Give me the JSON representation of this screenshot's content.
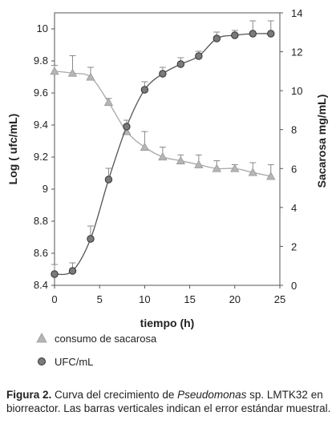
{
  "chart_data": {
    "type": "line",
    "xlabel": "tiempo (h)",
    "ylabel_left": "Log ( ufc/mL)",
    "ylabel_right": "Sacarosa mg/mL)",
    "xlim": [
      0,
      25
    ],
    "ylim_left": [
      8.4,
      10.1
    ],
    "ylim_right": [
      0,
      14
    ],
    "xticks": [
      "0",
      "5",
      "10",
      "15",
      "20",
      "25"
    ],
    "yticks_left": [
      "8.4",
      "8.6",
      "8.8",
      "9",
      "9.2",
      "9.4",
      "9.6",
      "9.8",
      "10"
    ],
    "yticks_right": [
      "0",
      "2",
      "4",
      "6",
      "8",
      "10",
      "12",
      "14"
    ],
    "legend_position": "bottom-left",
    "grid": false,
    "series": [
      {
        "name": "consumo de sacarosa",
        "axis": "right",
        "marker": "triangle",
        "color": "#b5b5b5",
        "x": [
          0,
          2,
          4,
          6,
          8,
          10,
          12,
          14,
          16,
          18,
          20,
          22,
          24
        ],
        "y": [
          11.0,
          10.9,
          10.7,
          9.4,
          7.9,
          7.1,
          6.6,
          6.4,
          6.2,
          6.0,
          6.0,
          5.8,
          5.6
        ],
        "error": [
          0.3,
          0.9,
          0.5,
          0.2,
          0.2,
          0.8,
          0.5,
          0.3,
          0.5,
          0.4,
          0.2,
          0.5,
          0.6
        ]
      },
      {
        "name": "UFC/mL",
        "axis": "left",
        "marker": "circle",
        "color": "#7a7a7a",
        "x": [
          0,
          2,
          4,
          6,
          8,
          10,
          12,
          14,
          16,
          18,
          20,
          22,
          24
        ],
        "y": [
          8.47,
          8.49,
          8.69,
          9.06,
          9.39,
          9.62,
          9.72,
          9.78,
          9.83,
          9.94,
          9.96,
          9.97,
          9.97
        ],
        "error": [
          0.06,
          0.05,
          0.08,
          0.07,
          0.04,
          0.05,
          0.04,
          0.04,
          0.03,
          0.04,
          0.03,
          0.08,
          0.08
        ]
      }
    ]
  },
  "caption": {
    "label": "Figura 2.",
    "text_before": " Curva del crecimiento de ",
    "italic": "Pseudomonas",
    "text_after": " sp. LMTK32 en biorreactor. Las barras verticales indican el error estándar muestral."
  }
}
